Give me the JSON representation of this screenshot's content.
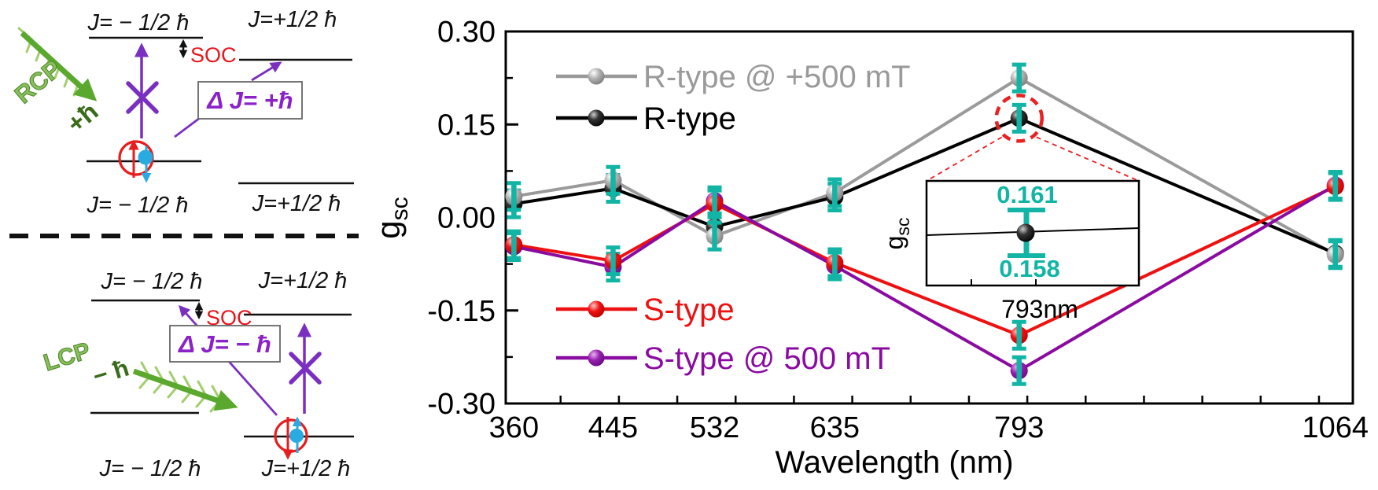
{
  "left_panel": {
    "top_diagram": {
      "upper_left_level": "J= − 1/2 ħ",
      "upper_right_level": "J=+1/2 ħ",
      "lower_left_level": "J= − 1/2 ħ",
      "lower_right_level": "J=+1/2 ħ",
      "soc_label": "SOC",
      "delta_label": "Δ J= +ħ",
      "photon_label": "RCP",
      "photon_momentum": "+ħ"
    },
    "bottom_diagram": {
      "upper_left_level": "J= − 1/2 ħ",
      "upper_right_level": "J=+1/2 ħ",
      "lower_left_level": "J= − 1/2 ħ",
      "lower_right_level": "J=+1/2 ħ",
      "soc_label": "SOC",
      "delta_label": "Δ J= − ħ",
      "photon_label": "LCP",
      "photon_momentum": "− ħ"
    }
  },
  "chart_data": {
    "type": "line",
    "title": "",
    "xlabel": "Wavelength (nm)",
    "ylabel_main": "g",
    "ylabel_sub": "sc",
    "x": [
      360,
      445,
      532,
      635,
      793,
      1064
    ],
    "x_tick_labels": [
      "360",
      "445",
      "532",
      "635",
      "793",
      "1064"
    ],
    "xlim_nm": [
      353,
      1079
    ],
    "x_minor_ticks_nm": {
      "start": 400,
      "end": 1050,
      "step": 50
    },
    "ylim": [
      -0.3,
      0.3
    ],
    "yticks": [
      0.3,
      0.15,
      0.0,
      -0.15,
      -0.3
    ],
    "ytick_labels": [
      "0.30",
      "0.15",
      "0.00",
      "-0.15",
      "-0.30"
    ],
    "yticks_minor": [
      0.225,
      0.075,
      -0.075,
      -0.225
    ],
    "grid": false,
    "error_bar": 0.018,
    "series": [
      {
        "name": "R-type @ +500 mT",
        "color": "#9a9a9a",
        "gradient": "g-gray",
        "values": [
          0.034,
          0.06,
          -0.03,
          0.04,
          0.225,
          -0.06
        ]
      },
      {
        "name": "R-type",
        "color": "#000000",
        "gradient": "g-black",
        "values": [
          0.022,
          0.047,
          -0.015,
          0.033,
          0.16,
          -0.058
        ]
      },
      {
        "name": "S-type",
        "color": "#ee1111",
        "gradient": "g-red",
        "values": [
          -0.044,
          -0.07,
          0.022,
          -0.073,
          -0.19,
          0.05
        ]
      },
      {
        "name": "S-type @ 500 mT",
        "color": "#8a0ba0",
        "gradient": "g-purple",
        "values": [
          -0.047,
          -0.08,
          0.027,
          -0.078,
          -0.247,
          0.052
        ]
      }
    ],
    "legend_position": [
      "upper-left",
      "lower-left"
    ],
    "highlight": {
      "wavelength_nm": 793,
      "series": "R-type"
    },
    "inset": {
      "ylabel_main": "g",
      "ylabel_sub": "sc",
      "upper_value": "0.161",
      "lower_value": "0.158",
      "xlabel": "793nm"
    }
  },
  "colors": {
    "teal": "#12b5a5",
    "gray_series": "#9a9a9a",
    "black_series": "#000000",
    "red_series": "#ee1111",
    "purple_series": "#8a0ba0",
    "soc_red": "#e8151c",
    "annotation_purple": "#7a2fc0",
    "photon_green": "#5aa82e",
    "photon_green_dark": "#3a6b1a",
    "electron_blue": "#29abe2",
    "electron_red": "#e81c1c",
    "highlight_dash_red": "#e82222"
  }
}
